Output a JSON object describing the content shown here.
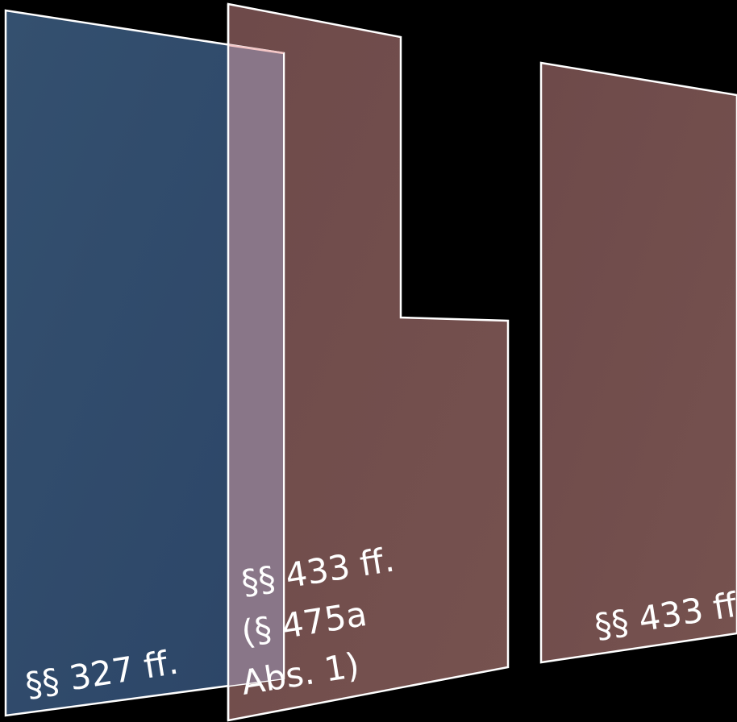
{
  "panels": [
    {
      "id": "left",
      "color": "#2f4a6d",
      "label_lines": [
        "§§ 327 ff."
      ]
    },
    {
      "id": "middle",
      "color": "#724f4e",
      "label_lines": [
        "§§ 433 ff.",
        "(§ 475a",
        "Abs. 1)"
      ]
    },
    {
      "id": "right",
      "color": "#724f4e",
      "label_lines": [
        "§§ 433 ff."
      ]
    }
  ],
  "colors": {
    "background": "#000000",
    "overlap": "#8c7889",
    "outline": "#ffffff"
  }
}
